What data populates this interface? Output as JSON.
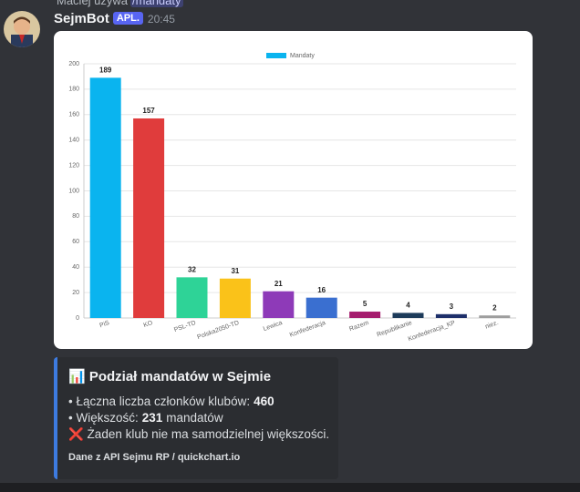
{
  "reply": {
    "user": "Maciej używa",
    "command": "/mandaty"
  },
  "message": {
    "author": "SejmBot",
    "badge": "APL.",
    "time": "20:45"
  },
  "chart_data": {
    "type": "bar",
    "legend": "Mandaty",
    "categories": [
      "PiS",
      "KO",
      "PSL-TD",
      "Polska2050-TD",
      "Lewica",
      "Konfederacja",
      "Razem",
      "Republikanie",
      "Konfederacja_KP",
      "niez."
    ],
    "values": [
      189,
      157,
      32,
      31,
      21,
      16,
      5,
      4,
      3,
      2
    ],
    "colors": [
      "#0ab4ef",
      "#e03c3c",
      "#2ed397",
      "#fac219",
      "#8e3ab8",
      "#3a6fd0",
      "#a51d6e",
      "#1d3b5a",
      "#1d2f6a",
      "#9e9e9e"
    ],
    "legend_color": "#0ab4ef",
    "ylim": [
      0,
      200
    ],
    "yticks": [
      0,
      20,
      40,
      60,
      80,
      100,
      120,
      140,
      160,
      180,
      200
    ],
    "grid": true
  },
  "embed": {
    "title": "📊 Podział mandatów w Sejmie",
    "lines": [
      {
        "label": "• Łączna liczba członków klubów:",
        "value": 460
      },
      {
        "label": "• Większość:",
        "value": 231,
        "suffix": "mandatów"
      },
      {
        "label": "❌ Żaden klub nie ma samodzielnej większości."
      }
    ],
    "footer": "Dane z API Sejmu RP / quickchart.io"
  }
}
